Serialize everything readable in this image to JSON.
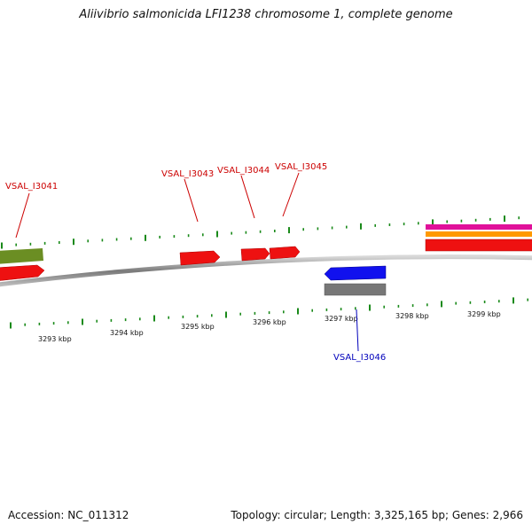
{
  "title": "Aliivibrio salmonicida LFI1238 chromosome 1, complete genome",
  "footer": {
    "accession_text": "Accession: NC_011312",
    "summary_text": "Topology: circular; Length: 3,325,165 bp; Genes: 2,966"
  },
  "colors": {
    "backbone": "#8a8a8a",
    "tick": "#1a8a1a",
    "forward_gene": "#ee1111",
    "reverse_gene": "#1111ee",
    "olive_feature": "#6b8e23",
    "gray_feature": "#777777",
    "magenta_feature": "#e0119a",
    "orange_feature": "#ff9900",
    "forward_label": "#cc0000",
    "reverse_label": "#0000bb"
  },
  "axis": {
    "unit": "kbp",
    "tick_labels": [
      "3293 kbp",
      "3294 kbp",
      "3295 kbp",
      "3296 kbp",
      "3297 kbp",
      "3298 kbp",
      "3299 kbp"
    ]
  },
  "genes": [
    {
      "locus_tag": "VSAL_I3041",
      "strand": "forward"
    },
    {
      "locus_tag": "VSAL_I3043",
      "strand": "forward"
    },
    {
      "locus_tag": "VSAL_I3044",
      "strand": "forward"
    },
    {
      "locus_tag": "VSAL_I3045",
      "strand": "forward"
    },
    {
      "locus_tag": "VSAL_I3046",
      "strand": "reverse"
    }
  ]
}
